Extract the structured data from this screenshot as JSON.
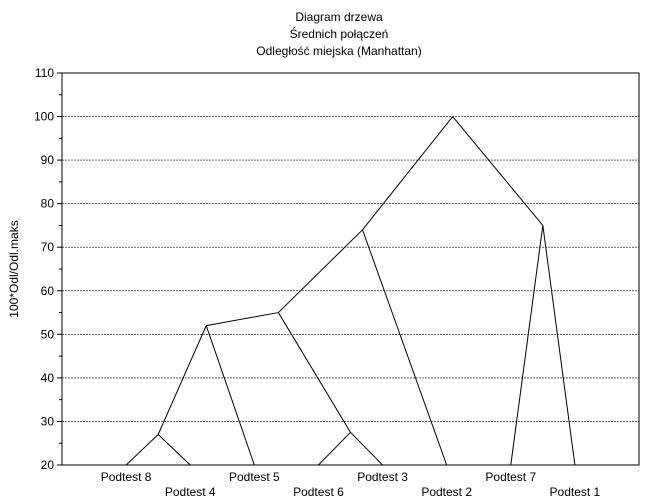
{
  "chart_data": {
    "type": "dendrogram",
    "title": [
      "Diagram drzewa",
      "Średnich połączeń",
      "Odległość miejska (Manhattan)"
    ],
    "ylabel": "100*Odl/Odl.maks",
    "ylim": [
      20,
      110
    ],
    "yticks": [
      20,
      30,
      40,
      50,
      60,
      70,
      80,
      90,
      100,
      110
    ],
    "grid": true,
    "leaves": [
      "Podtest 8",
      "Podtest 4",
      "Podtest 5",
      "Podtest 6",
      "Podtest 3",
      "Podtest 2",
      "Podtest 7",
      "Podtest 1"
    ],
    "merges": [
      {
        "left": "Podtest 8",
        "right": "Podtest 4",
        "height": 27
      },
      {
        "left": "Podtest 6",
        "right": "Podtest 3",
        "height": 27.5
      },
      {
        "left": "Podtest 8+4",
        "right": "Podtest 5",
        "height": 52
      },
      {
        "left": "Podtest 8+4+5",
        "right": "Podtest 6+3",
        "height": 55
      },
      {
        "left": "Podtest 8+4+5+6+3",
        "right": "Podtest 2",
        "height": 74
      },
      {
        "left": "Podtest 7",
        "right": "Podtest 1",
        "height": 75
      },
      {
        "left": "Podtest 8+4+5+6+3+2",
        "right": "Podtest 7+1",
        "height": 100
      }
    ]
  }
}
